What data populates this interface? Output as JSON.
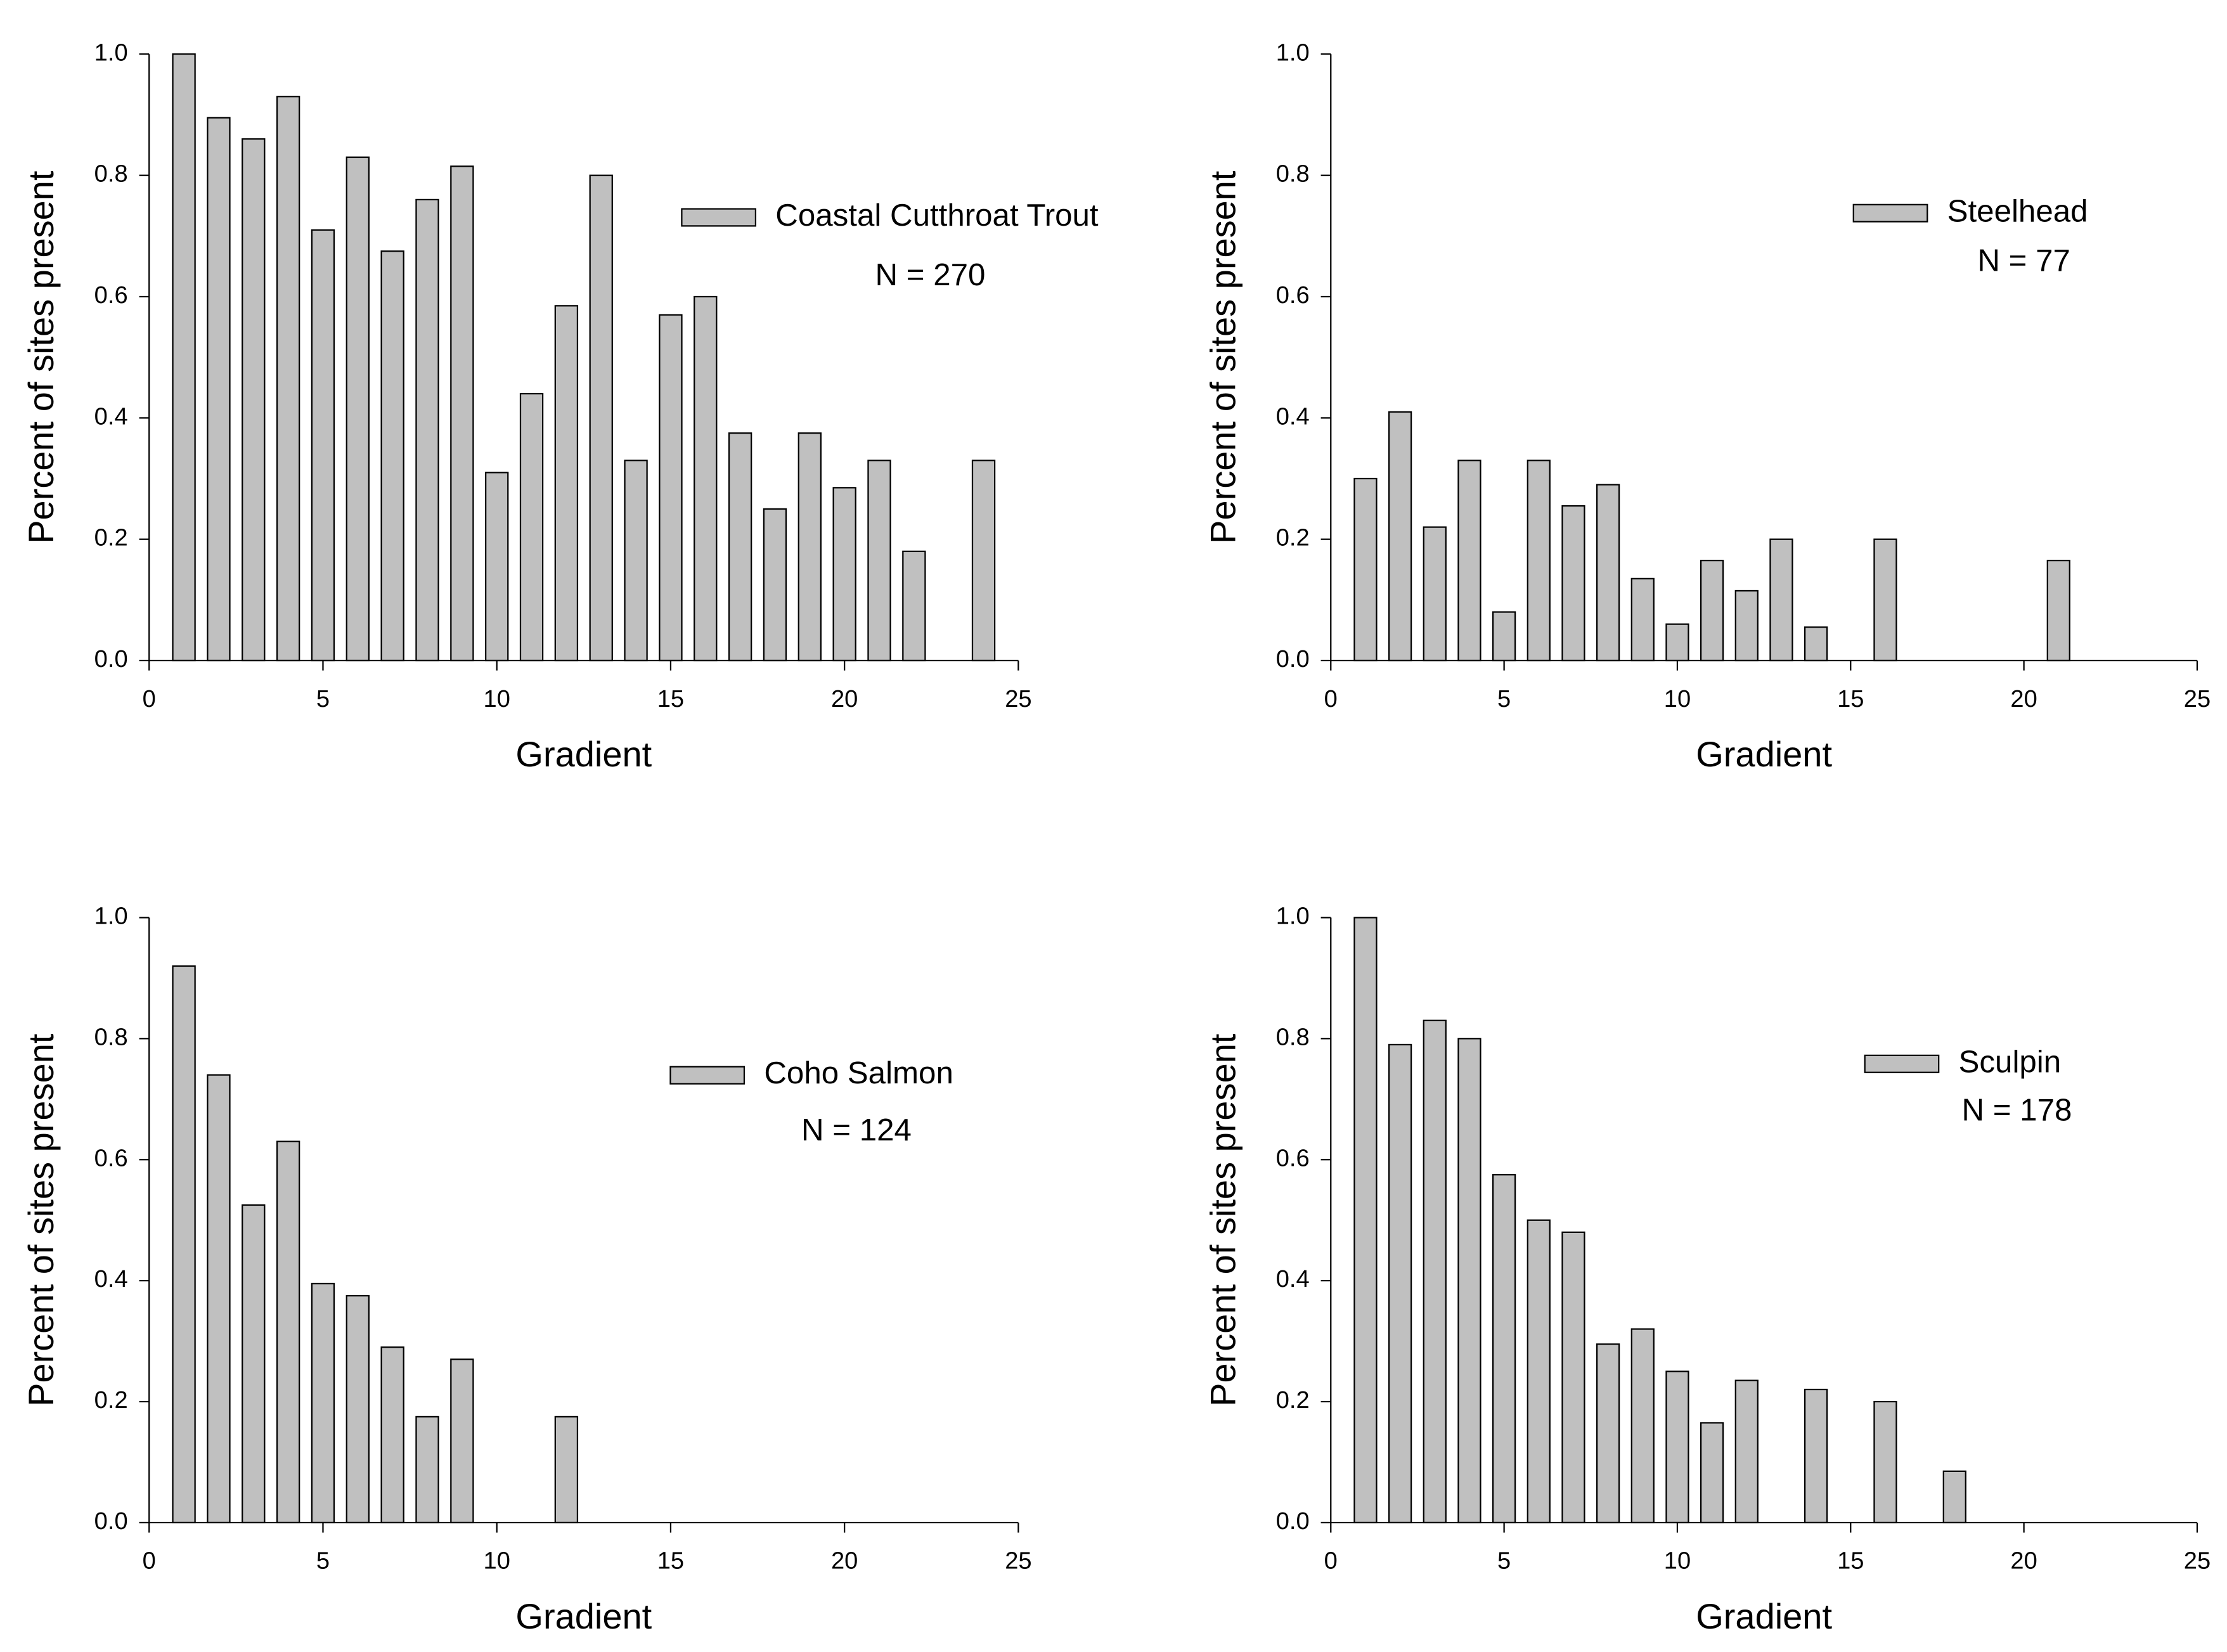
{
  "chart_data": [
    {
      "type": "bar",
      "xlabel": "Gradient",
      "ylabel": "Percent of sites present",
      "annotation": "N = 270",
      "x": [
        1,
        2,
        3,
        4,
        5,
        6,
        7,
        8,
        9,
        10,
        11,
        12,
        13,
        14,
        15,
        16,
        17,
        18,
        19,
        20,
        21,
        22,
        24
      ],
      "series": [
        {
          "name": "Coastal Cutthroat Trout",
          "color": "#c0c0c0",
          "values": [
            1.0,
            0.895,
            0.86,
            0.93,
            0.71,
            0.83,
            0.675,
            0.76,
            0.815,
            0.31,
            0.44,
            0.585,
            0.8,
            0.33,
            0.57,
            0.6,
            0.375,
            0.25,
            0.375,
            0.285,
            0.33,
            0.18,
            0.33
          ]
        }
      ],
      "xlim": [
        0,
        25
      ],
      "xticks": [
        0,
        5,
        10,
        15,
        20,
        25
      ],
      "ylim": [
        0,
        1
      ],
      "yticks": [
        {
          "value": 0,
          "label": "0.0"
        },
        {
          "value": 0.2,
          "label": "0.2"
        },
        {
          "value": 0.4,
          "label": "0.4"
        },
        {
          "value": 0.6,
          "label": "0.6"
        },
        {
          "value": 0.8,
          "label": "0.8"
        },
        {
          "value": 1,
          "label": "1.0"
        }
      ]
    },
    {
      "type": "bar",
      "xlabel": "Gradient",
      "ylabel": "Percent of sites present",
      "annotation": "N = 77",
      "x": [
        1,
        2,
        3,
        4,
        5,
        6,
        7,
        8,
        9,
        10,
        11,
        12,
        13,
        14,
        16,
        21
      ],
      "series": [
        {
          "name": "Steelhead",
          "color": "#c0c0c0",
          "values": [
            0.3,
            0.41,
            0.22,
            0.33,
            0.08,
            0.33,
            0.255,
            0.29,
            0.135,
            0.06,
            0.165,
            0.115,
            0.2,
            0.055,
            0.2,
            0.165
          ]
        }
      ],
      "xlim": [
        0,
        25
      ],
      "xticks": [
        0,
        5,
        10,
        15,
        20,
        25
      ],
      "ylim": [
        0,
        1
      ],
      "yticks": [
        {
          "value": 0,
          "label": "0.0"
        },
        {
          "value": 0.2,
          "label": "0.2"
        },
        {
          "value": 0.4,
          "label": "0.4"
        },
        {
          "value": 0.6,
          "label": "0.6"
        },
        {
          "value": 0.8,
          "label": "0.8"
        },
        {
          "value": 1,
          "label": "1.0"
        }
      ]
    },
    {
      "type": "bar",
      "xlabel": "Gradient",
      "ylabel": "Percent of sites present",
      "annotation": "N = 124",
      "x": [
        1,
        2,
        3,
        4,
        5,
        6,
        7,
        8,
        9,
        12
      ],
      "series": [
        {
          "name": "Coho Salmon",
          "color": "#c0c0c0",
          "values": [
            0.92,
            0.74,
            0.525,
            0.63,
            0.395,
            0.375,
            0.29,
            0.175,
            0.27,
            0.175
          ]
        }
      ],
      "xlim": [
        0,
        25
      ],
      "xticks": [
        0,
        5,
        10,
        15,
        20,
        25
      ],
      "ylim": [
        0,
        1
      ],
      "yticks": [
        {
          "value": 0,
          "label": "0.0"
        },
        {
          "value": 0.2,
          "label": "0.2"
        },
        {
          "value": 0.4,
          "label": "0.4"
        },
        {
          "value": 0.6,
          "label": "0.6"
        },
        {
          "value": 0.8,
          "label": "0.8"
        },
        {
          "value": 1,
          "label": "1.0"
        }
      ]
    },
    {
      "type": "bar",
      "xlabel": "Gradient",
      "ylabel": "Percent of sites present",
      "annotation": "N = 178",
      "x": [
        1,
        2,
        3,
        4,
        5,
        6,
        7,
        8,
        9,
        10,
        11,
        12,
        14,
        16,
        18
      ],
      "series": [
        {
          "name": "Sculpin",
          "color": "#c0c0c0",
          "values": [
            1.0,
            0.79,
            0.83,
            0.8,
            0.575,
            0.5,
            0.48,
            0.295,
            0.32,
            0.25,
            0.165,
            0.235,
            0.22,
            0.2,
            0.085
          ]
        }
      ],
      "xlim": [
        0,
        25
      ],
      "xticks": [
        0,
        5,
        10,
        15,
        20,
        25
      ],
      "ylim": [
        0,
        1
      ],
      "yticks": [
        {
          "value": 0,
          "label": "0.0"
        },
        {
          "value": 0.2,
          "label": "0.2"
        },
        {
          "value": 0.4,
          "label": "0.4"
        },
        {
          "value": 0.6,
          "label": "0.6"
        },
        {
          "value": 0.8,
          "label": "0.8"
        },
        {
          "value": 1,
          "label": "1.0"
        }
      ]
    }
  ]
}
